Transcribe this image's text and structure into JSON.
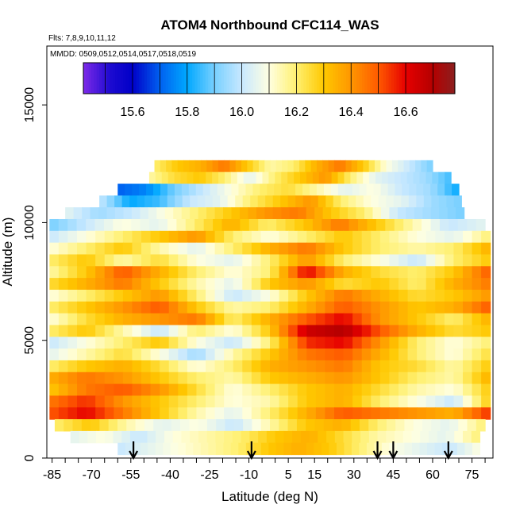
{
  "chart_data": {
    "type": "heatmap",
    "title": "ATOM4 Northbound CFC114_WAS",
    "flights_label": "Flts: 7,8,9,10,11,12",
    "dates_label": "MMDD: 0509,0512,0514,0517,0518,0519",
    "xlabel": "Latitude (deg N)",
    "ylabel": "Altitude (m)",
    "xlim": [
      -87,
      83
    ],
    "ylim": [
      0,
      17500
    ],
    "x_ticks": [
      -85,
      -70,
      -55,
      -40,
      -25,
      -10,
      5,
      15,
      30,
      45,
      60,
      75
    ],
    "y_ticks": [
      0,
      5000,
      10000,
      15000
    ],
    "colorbar": {
      "range": [
        15.42,
        16.78
      ],
      "ticks": [
        15.6,
        15.8,
        16.0,
        16.2,
        16.4,
        16.6
      ],
      "color_stops": [
        {
          "v": 15.42,
          "c": "#7d2ae8"
        },
        {
          "v": 15.52,
          "c": "#1c0ad0"
        },
        {
          "v": 15.6,
          "c": "#0000c8"
        },
        {
          "v": 15.7,
          "c": "#0060f0"
        },
        {
          "v": 15.8,
          "c": "#00a8ff"
        },
        {
          "v": 15.9,
          "c": "#78d0ff"
        },
        {
          "v": 16.0,
          "c": "#c8e8ff"
        },
        {
          "v": 16.1,
          "c": "#ffffe0"
        },
        {
          "v": 16.2,
          "c": "#fff070"
        },
        {
          "v": 16.3,
          "c": "#ffc800"
        },
        {
          "v": 16.4,
          "c": "#ff9600"
        },
        {
          "v": 16.5,
          "c": "#ff5a00"
        },
        {
          "v": 16.6,
          "c": "#e60000"
        },
        {
          "v": 16.7,
          "c": "#b40000"
        },
        {
          "v": 16.78,
          "c": "#8c2020"
        }
      ]
    },
    "arrows_latitude": [
      -54,
      -9,
      39,
      45,
      66
    ],
    "rows": [
      {
        "alt": 12400,
        "lat_min": -46,
        "lat_max": 60,
        "v": [
          16.2,
          16.3,
          16.35,
          16.45,
          16.3,
          16.15,
          16.2,
          16.35,
          16.45,
          16.3,
          16.1,
          16.0,
          15.9
        ]
      },
      {
        "alt": 11900,
        "lat_min": -48,
        "lat_max": 67,
        "v": [
          16.15,
          16.25,
          16.3,
          16.2,
          16.05,
          16.2,
          16.3,
          16.4,
          16.2,
          16.05,
          16.0,
          15.95,
          15.85
        ]
      },
      {
        "alt": 11400,
        "lat_min": -60,
        "lat_max": 70,
        "v": [
          15.7,
          15.75,
          15.9,
          16.0,
          16.1,
          16.2,
          16.25,
          16.15,
          16.05,
          16.1,
          16.0,
          15.95,
          15.8
        ]
      },
      {
        "alt": 10900,
        "lat_min": -67,
        "lat_max": 71,
        "v": [
          16.0,
          15.8,
          15.85,
          16.0,
          16.05,
          16.2,
          16.3,
          16.4,
          16.2,
          16.1,
          16.05,
          15.95,
          15.9
        ]
      },
      {
        "alt": 10400,
        "lat_min": -80,
        "lat_max": 72,
        "v": [
          16.05,
          15.95,
          16.0,
          16.1,
          16.2,
          16.3,
          16.4,
          16.45,
          16.3,
          16.2,
          16.0,
          15.95,
          15.9
        ]
      },
      {
        "alt": 9900,
        "lat_min": -86,
        "lat_max": 80,
        "v": [
          15.9,
          16.0,
          16.1,
          16.05,
          16.2,
          16.35,
          16.2,
          16.3,
          16.45,
          16.3,
          16.15,
          16.0,
          16.05
        ]
      },
      {
        "alt": 9400,
        "lat_min": -86,
        "lat_max": 82,
        "v": [
          16.0,
          16.1,
          16.2,
          16.3,
          16.4,
          16.2,
          16.1,
          16.2,
          16.3,
          16.2,
          16.1,
          16.05,
          16.2
        ]
      },
      {
        "alt": 8900,
        "lat_min": -86,
        "lat_max": 82,
        "v": [
          16.1,
          16.2,
          16.3,
          16.15,
          16.05,
          16.2,
          16.35,
          16.45,
          16.3,
          16.2,
          16.15,
          16.2,
          16.35
        ]
      },
      {
        "alt": 8400,
        "lat_min": -86,
        "lat_max": 82,
        "v": [
          16.2,
          16.3,
          16.15,
          16.25,
          16.1,
          16.05,
          16.2,
          16.4,
          16.2,
          16.1,
          16.0,
          16.2,
          16.3
        ]
      },
      {
        "alt": 7900,
        "lat_min": -86,
        "lat_max": 82,
        "v": [
          16.15,
          16.3,
          16.5,
          16.35,
          16.2,
          16.1,
          16.2,
          16.6,
          16.35,
          16.25,
          16.2,
          16.3,
          16.5
        ]
      },
      {
        "alt": 7400,
        "lat_min": -86,
        "lat_max": 82,
        "v": [
          16.25,
          16.35,
          16.45,
          16.3,
          16.15,
          16.05,
          16.3,
          16.4,
          16.25,
          16.3,
          16.2,
          16.35,
          16.45
        ]
      },
      {
        "alt": 6900,
        "lat_min": -86,
        "lat_max": 82,
        "v": [
          16.1,
          16.2,
          16.3,
          16.4,
          16.2,
          16.0,
          16.1,
          16.3,
          16.45,
          16.35,
          16.25,
          16.3,
          16.4
        ]
      },
      {
        "alt": 6400,
        "lat_min": -86,
        "lat_max": 82,
        "v": [
          16.2,
          16.3,
          16.4,
          16.5,
          16.3,
          16.15,
          16.2,
          16.35,
          16.5,
          16.4,
          16.3,
          16.35,
          16.5
        ]
      },
      {
        "alt": 5900,
        "lat_min": -86,
        "lat_max": 82,
        "v": [
          16.1,
          16.25,
          16.35,
          16.4,
          16.45,
          16.2,
          16.35,
          16.5,
          16.6,
          16.4,
          16.3,
          16.2,
          16.35
        ]
      },
      {
        "alt": 5400,
        "lat_min": -86,
        "lat_max": 82,
        "v": [
          16.2,
          16.3,
          16.15,
          16.0,
          16.2,
          16.1,
          16.3,
          16.65,
          16.7,
          16.5,
          16.35,
          16.25,
          16.3
        ]
      },
      {
        "alt": 4900,
        "lat_min": -86,
        "lat_max": 82,
        "v": [
          16.0,
          16.1,
          16.2,
          16.3,
          16.1,
          16.0,
          16.2,
          16.55,
          16.6,
          16.4,
          16.2,
          16.1,
          16.2
        ]
      },
      {
        "alt": 4400,
        "lat_min": -86,
        "lat_max": 82,
        "v": [
          16.05,
          16.15,
          16.25,
          16.1,
          15.95,
          16.15,
          16.3,
          16.45,
          16.5,
          16.35,
          16.2,
          16.1,
          16.25
        ]
      },
      {
        "alt": 3900,
        "lat_min": -86,
        "lat_max": 82,
        "v": [
          16.2,
          16.3,
          16.35,
          16.25,
          16.1,
          16.2,
          16.35,
          16.4,
          16.45,
          16.3,
          16.25,
          16.15,
          16.3
        ]
      },
      {
        "alt": 3400,
        "lat_min": -86,
        "lat_max": 82,
        "v": [
          16.35,
          16.45,
          16.4,
          16.3,
          16.2,
          16.15,
          16.3,
          16.35,
          16.4,
          16.3,
          16.2,
          16.15,
          16.35
        ]
      },
      {
        "alt": 2900,
        "lat_min": -86,
        "lat_max": 82,
        "v": [
          16.3,
          16.45,
          16.5,
          16.4,
          16.25,
          16.1,
          16.2,
          16.3,
          16.35,
          16.25,
          16.15,
          16.1,
          16.3
        ]
      },
      {
        "alt": 2400,
        "lat_min": -86,
        "lat_max": 82,
        "v": [
          16.45,
          16.55,
          16.4,
          16.3,
          16.2,
          16.1,
          16.15,
          16.3,
          16.35,
          16.2,
          16.1,
          16.0,
          16.3
        ]
      },
      {
        "alt": 1900,
        "lat_min": -86,
        "lat_max": 82,
        "v": [
          16.5,
          16.6,
          16.45,
          16.3,
          16.15,
          16.05,
          16.2,
          16.35,
          16.5,
          16.45,
          16.4,
          16.35,
          16.55
        ]
      },
      {
        "alt": 1400,
        "lat_min": -84,
        "lat_max": 80,
        "v": [
          16.2,
          16.3,
          16.15,
          16.05,
          16.1,
          16.0,
          16.15,
          16.3,
          16.35,
          16.2,
          16.1,
          16.05,
          16.2
        ]
      },
      {
        "alt": 900,
        "lat_min": -78,
        "lat_max": 78,
        "v": [
          16.05,
          16.1,
          16.0,
          16.1,
          16.15,
          16.2,
          16.3,
          16.35,
          16.25,
          16.15,
          16.1,
          16.05,
          16.2
        ]
      },
      {
        "alt": 400,
        "lat_min": -60,
        "lat_max": 78,
        "v": [
          16.0,
          16.05,
          16.1,
          16.15,
          16.2,
          16.3,
          16.35,
          16.3,
          16.2,
          16.1,
          16.05,
          16.0,
          16.1
        ]
      }
    ]
  }
}
